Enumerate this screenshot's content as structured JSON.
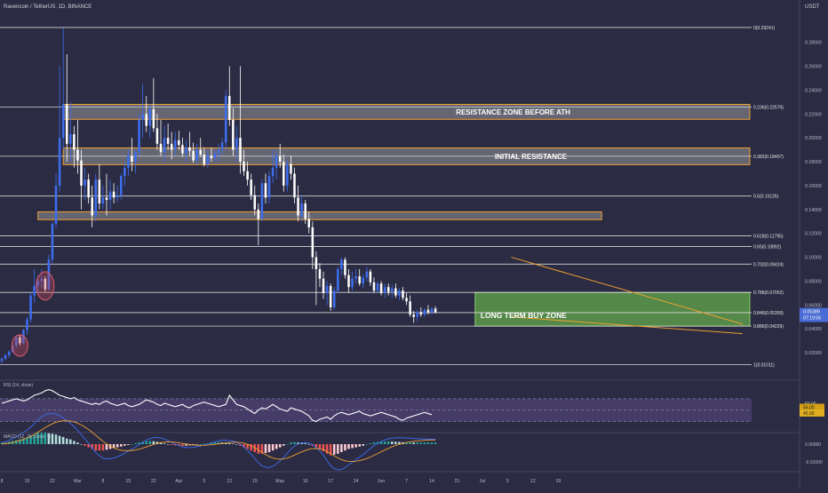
{
  "header": {
    "symbol": "Ravencoin / TetherUS, 1D, BINANCE",
    "currency": "USDT"
  },
  "colors": {
    "background": "#2b2b43",
    "up": "#3d6ef0",
    "down": "#ffffff",
    "fib_line": "#d8d8d8",
    "zone_fill": "#b0b0b0",
    "zone_border": "#f0a030",
    "buy_zone_fill": "#5c9a4a",
    "buy_zone_border": "#8fd06c",
    "wedge_line": "#f0a030",
    "rsi_band": "#5c4a87",
    "rsi_line": "#ffffff",
    "macd_pos": "#26a69a",
    "macd_neg": "#ef5350",
    "macd_line": "#3d6ef0",
    "signal_line": "#f0a030",
    "price_badge": "#4a6cd4"
  },
  "chart_data": {
    "type": "candlestick",
    "price_axis": {
      "range": [
        0.0,
        0.3
      ],
      "ticks": [
        "0.28000",
        "0.26000",
        "0.24000",
        "0.22000",
        "0.20000",
        "0.18000",
        "0.16000",
        "0.14000",
        "0.12000",
        "0.10000",
        "0.08000",
        "0.06000",
        "0.04000",
        "0.02000"
      ],
      "tick_values": [
        0.28,
        0.26,
        0.24,
        0.22,
        0.2,
        0.18,
        0.16,
        0.14,
        0.12,
        0.1,
        0.08,
        0.06,
        0.04,
        0.02
      ]
    },
    "fib_levels": [
      {
        "label": "0(0.29241)",
        "value": 0.29241
      },
      {
        "label": "0.236(0.22579)",
        "value": 0.22579
      },
      {
        "label": "0.382(0.18457)",
        "value": 0.18457
      },
      {
        "label": "0.5(0.15126)",
        "value": 0.15126
      },
      {
        "label": "0.618(0.11795)",
        "value": 0.11795
      },
      {
        "label": "0.65(0.10892)",
        "value": 0.10892
      },
      {
        "label": "0.702(0.09424)",
        "value": 0.09424
      },
      {
        "label": "0.786(0.07052)",
        "value": 0.07052
      },
      {
        "label": "0.846(0.05359)",
        "value": 0.05359
      },
      {
        "label": "0.886(0.04229)",
        "value": 0.04229
      },
      {
        "label": "1(0.01011)",
        "value": 0.01011
      }
    ],
    "zones": [
      {
        "label": "RESISTANCE ZONE BEFORE ATH",
        "low": 0.2155,
        "high": 0.228,
        "kind": "resistance",
        "start": 17,
        "end": 207
      },
      {
        "label": "INITIAL RESISTANCE",
        "low": 0.1775,
        "high": 0.1915,
        "kind": "resistance",
        "start": 17,
        "end": 207
      },
      {
        "label": "",
        "low": 0.1315,
        "high": 0.138,
        "kind": "resistance",
        "start": 10,
        "end": 166
      },
      {
        "label": "LONG TERM BUY ZONE",
        "low": 0.0423,
        "high": 0.0705,
        "kind": "buy",
        "start": 131,
        "end": 207
      }
    ],
    "wedge": {
      "upper": [
        [
          141,
          0.1
        ],
        [
          205,
          0.044
        ]
      ],
      "lower": [
        [
          141,
          0.05
        ],
        [
          205,
          0.036
        ]
      ]
    },
    "current_price": {
      "value": "0.05389",
      "countdown": "07:19:56"
    },
    "candles": [
      {
        "o": 0.013,
        "h": 0.016,
        "l": 0.011,
        "c": 0.015
      },
      {
        "o": 0.015,
        "h": 0.019,
        "l": 0.014,
        "c": 0.018
      },
      {
        "o": 0.018,
        "h": 0.022,
        "l": 0.016,
        "c": 0.021
      },
      {
        "o": 0.021,
        "h": 0.027,
        "l": 0.02,
        "c": 0.026
      },
      {
        "o": 0.026,
        "h": 0.034,
        "l": 0.024,
        "c": 0.033
      },
      {
        "o": 0.033,
        "h": 0.035,
        "l": 0.026,
        "c": 0.028
      },
      {
        "o": 0.028,
        "h": 0.04,
        "l": 0.027,
        "c": 0.039
      },
      {
        "o": 0.039,
        "h": 0.05,
        "l": 0.035,
        "c": 0.048
      },
      {
        "o": 0.048,
        "h": 0.07,
        "l": 0.045,
        "c": 0.068
      },
      {
        "o": 0.068,
        "h": 0.09,
        "l": 0.062,
        "c": 0.076
      },
      {
        "o": 0.076,
        "h": 0.085,
        "l": 0.07,
        "c": 0.08
      },
      {
        "o": 0.08,
        "h": 0.09,
        "l": 0.074,
        "c": 0.082
      },
      {
        "o": 0.082,
        "h": 0.084,
        "l": 0.071,
        "c": 0.073
      },
      {
        "o": 0.073,
        "h": 0.102,
        "l": 0.072,
        "c": 0.098
      },
      {
        "o": 0.098,
        "h": 0.13,
        "l": 0.095,
        "c": 0.128
      },
      {
        "o": 0.128,
        "h": 0.17,
        "l": 0.125,
        "c": 0.16
      },
      {
        "o": 0.16,
        "h": 0.26,
        "l": 0.155,
        "c": 0.2
      },
      {
        "o": 0.2,
        "h": 0.292,
        "l": 0.19,
        "c": 0.228
      },
      {
        "o": 0.228,
        "h": 0.27,
        "l": 0.18,
        "c": 0.195
      },
      {
        "o": 0.195,
        "h": 0.23,
        "l": 0.18,
        "c": 0.203
      },
      {
        "o": 0.203,
        "h": 0.21,
        "l": 0.175,
        "c": 0.19
      },
      {
        "o": 0.19,
        "h": 0.215,
        "l": 0.17,
        "c": 0.181
      },
      {
        "o": 0.181,
        "h": 0.19,
        "l": 0.14,
        "c": 0.16
      },
      {
        "o": 0.16,
        "h": 0.175,
        "l": 0.148,
        "c": 0.165
      },
      {
        "o": 0.165,
        "h": 0.17,
        "l": 0.145,
        "c": 0.15
      },
      {
        "o": 0.15,
        "h": 0.16,
        "l": 0.125,
        "c": 0.135
      },
      {
        "o": 0.135,
        "h": 0.17,
        "l": 0.13,
        "c": 0.165
      },
      {
        "o": 0.165,
        "h": 0.178,
        "l": 0.14,
        "c": 0.145
      },
      {
        "o": 0.145,
        "h": 0.16,
        "l": 0.14,
        "c": 0.15
      },
      {
        "o": 0.15,
        "h": 0.17,
        "l": 0.135,
        "c": 0.148
      },
      {
        "o": 0.148,
        "h": 0.165,
        "l": 0.14,
        "c": 0.155
      },
      {
        "o": 0.155,
        "h": 0.162,
        "l": 0.145,
        "c": 0.15
      },
      {
        "o": 0.15,
        "h": 0.16,
        "l": 0.146,
        "c": 0.152
      },
      {
        "o": 0.152,
        "h": 0.17,
        "l": 0.148,
        "c": 0.168
      },
      {
        "o": 0.168,
        "h": 0.18,
        "l": 0.16,
        "c": 0.175
      },
      {
        "o": 0.175,
        "h": 0.19,
        "l": 0.168,
        "c": 0.185
      },
      {
        "o": 0.185,
        "h": 0.2,
        "l": 0.172,
        "c": 0.18
      },
      {
        "o": 0.18,
        "h": 0.19,
        "l": 0.17,
        "c": 0.188
      },
      {
        "o": 0.188,
        "h": 0.22,
        "l": 0.185,
        "c": 0.215
      },
      {
        "o": 0.215,
        "h": 0.245,
        "l": 0.2,
        "c": 0.22
      },
      {
        "o": 0.22,
        "h": 0.235,
        "l": 0.205,
        "c": 0.21
      },
      {
        "o": 0.21,
        "h": 0.228,
        "l": 0.2,
        "c": 0.224
      },
      {
        "o": 0.224,
        "h": 0.25,
        "l": 0.205,
        "c": 0.208
      },
      {
        "o": 0.208,
        "h": 0.22,
        "l": 0.19,
        "c": 0.195
      },
      {
        "o": 0.195,
        "h": 0.215,
        "l": 0.185,
        "c": 0.188
      },
      {
        "o": 0.188,
        "h": 0.21,
        "l": 0.18,
        "c": 0.2
      },
      {
        "o": 0.2,
        "h": 0.212,
        "l": 0.19,
        "c": 0.195
      },
      {
        "o": 0.195,
        "h": 0.205,
        "l": 0.182,
        "c": 0.19
      },
      {
        "o": 0.19,
        "h": 0.205,
        "l": 0.185,
        "c": 0.198
      },
      {
        "o": 0.198,
        "h": 0.206,
        "l": 0.19,
        "c": 0.194
      },
      {
        "o": 0.194,
        "h": 0.2,
        "l": 0.184,
        "c": 0.187
      },
      {
        "o": 0.187,
        "h": 0.198,
        "l": 0.18,
        "c": 0.192
      },
      {
        "o": 0.192,
        "h": 0.205,
        "l": 0.185,
        "c": 0.189
      },
      {
        "o": 0.189,
        "h": 0.196,
        "l": 0.179,
        "c": 0.181
      },
      {
        "o": 0.181,
        "h": 0.195,
        "l": 0.178,
        "c": 0.19
      },
      {
        "o": 0.19,
        "h": 0.2,
        "l": 0.184,
        "c": 0.186
      },
      {
        "o": 0.186,
        "h": 0.192,
        "l": 0.176,
        "c": 0.178
      },
      {
        "o": 0.178,
        "h": 0.19,
        "l": 0.175,
        "c": 0.185
      },
      {
        "o": 0.185,
        "h": 0.192,
        "l": 0.18,
        "c": 0.183
      },
      {
        "o": 0.183,
        "h": 0.19,
        "l": 0.18,
        "c": 0.187
      },
      {
        "o": 0.187,
        "h": 0.195,
        "l": 0.18,
        "c": 0.19
      },
      {
        "o": 0.19,
        "h": 0.2,
        "l": 0.186,
        "c": 0.196
      },
      {
        "o": 0.196,
        "h": 0.24,
        "l": 0.19,
        "c": 0.235
      },
      {
        "o": 0.235,
        "h": 0.26,
        "l": 0.21,
        "c": 0.215
      },
      {
        "o": 0.215,
        "h": 0.225,
        "l": 0.185,
        "c": 0.19
      },
      {
        "o": 0.19,
        "h": 0.21,
        "l": 0.18,
        "c": 0.2
      },
      {
        "o": 0.2,
        "h": 0.26,
        "l": 0.17,
        "c": 0.18
      },
      {
        "o": 0.18,
        "h": 0.19,
        "l": 0.168,
        "c": 0.172
      },
      {
        "o": 0.172,
        "h": 0.18,
        "l": 0.16,
        "c": 0.165
      },
      {
        "o": 0.165,
        "h": 0.17,
        "l": 0.148,
        "c": 0.152
      },
      {
        "o": 0.152,
        "h": 0.16,
        "l": 0.135,
        "c": 0.14
      },
      {
        "o": 0.14,
        "h": 0.145,
        "l": 0.11,
        "c": 0.132
      },
      {
        "o": 0.132,
        "h": 0.165,
        "l": 0.13,
        "c": 0.162
      },
      {
        "o": 0.162,
        "h": 0.17,
        "l": 0.145,
        "c": 0.15
      },
      {
        "o": 0.15,
        "h": 0.172,
        "l": 0.145,
        "c": 0.168
      },
      {
        "o": 0.168,
        "h": 0.19,
        "l": 0.162,
        "c": 0.175
      },
      {
        "o": 0.175,
        "h": 0.19,
        "l": 0.165,
        "c": 0.185
      },
      {
        "o": 0.185,
        "h": 0.195,
        "l": 0.175,
        "c": 0.18
      },
      {
        "o": 0.18,
        "h": 0.186,
        "l": 0.155,
        "c": 0.16
      },
      {
        "o": 0.16,
        "h": 0.182,
        "l": 0.155,
        "c": 0.178
      },
      {
        "o": 0.178,
        "h": 0.185,
        "l": 0.165,
        "c": 0.17
      },
      {
        "o": 0.17,
        "h": 0.175,
        "l": 0.145,
        "c": 0.15
      },
      {
        "o": 0.15,
        "h": 0.16,
        "l": 0.13,
        "c": 0.135
      },
      {
        "o": 0.135,
        "h": 0.152,
        "l": 0.13,
        "c": 0.145
      },
      {
        "o": 0.145,
        "h": 0.148,
        "l": 0.128,
        "c": 0.132
      },
      {
        "o": 0.132,
        "h": 0.138,
        "l": 0.12,
        "c": 0.125
      },
      {
        "o": 0.125,
        "h": 0.13,
        "l": 0.09,
        "c": 0.1
      },
      {
        "o": 0.1,
        "h": 0.105,
        "l": 0.06,
        "c": 0.09
      },
      {
        "o": 0.09,
        "h": 0.095,
        "l": 0.075,
        "c": 0.082
      },
      {
        "o": 0.082,
        "h": 0.088,
        "l": 0.065,
        "c": 0.07
      },
      {
        "o": 0.07,
        "h": 0.08,
        "l": 0.06,
        "c": 0.076
      },
      {
        "o": 0.076,
        "h": 0.078,
        "l": 0.055,
        "c": 0.058
      },
      {
        "o": 0.058,
        "h": 0.075,
        "l": 0.056,
        "c": 0.072
      },
      {
        "o": 0.072,
        "h": 0.092,
        "l": 0.07,
        "c": 0.09
      },
      {
        "o": 0.09,
        "h": 0.1,
        "l": 0.085,
        "c": 0.098
      },
      {
        "o": 0.098,
        "h": 0.1,
        "l": 0.082,
        "c": 0.085
      },
      {
        "o": 0.085,
        "h": 0.09,
        "l": 0.07,
        "c": 0.075
      },
      {
        "o": 0.075,
        "h": 0.088,
        "l": 0.072,
        "c": 0.082
      },
      {
        "o": 0.082,
        "h": 0.09,
        "l": 0.078,
        "c": 0.084
      },
      {
        "o": 0.084,
        "h": 0.09,
        "l": 0.076,
        "c": 0.078
      },
      {
        "o": 0.078,
        "h": 0.086,
        "l": 0.074,
        "c": 0.083
      },
      {
        "o": 0.083,
        "h": 0.092,
        "l": 0.08,
        "c": 0.088
      },
      {
        "o": 0.088,
        "h": 0.09,
        "l": 0.076,
        "c": 0.079
      },
      {
        "o": 0.079,
        "h": 0.083,
        "l": 0.07,
        "c": 0.072
      },
      {
        "o": 0.072,
        "h": 0.08,
        "l": 0.07,
        "c": 0.078
      },
      {
        "o": 0.078,
        "h": 0.08,
        "l": 0.068,
        "c": 0.07
      },
      {
        "o": 0.07,
        "h": 0.078,
        "l": 0.066,
        "c": 0.075
      },
      {
        "o": 0.075,
        "h": 0.078,
        "l": 0.068,
        "c": 0.071
      },
      {
        "o": 0.071,
        "h": 0.077,
        "l": 0.066,
        "c": 0.074
      },
      {
        "o": 0.074,
        "h": 0.078,
        "l": 0.066,
        "c": 0.068
      },
      {
        "o": 0.068,
        "h": 0.074,
        "l": 0.064,
        "c": 0.072
      },
      {
        "o": 0.072,
        "h": 0.075,
        "l": 0.064,
        "c": 0.066
      },
      {
        "o": 0.066,
        "h": 0.07,
        "l": 0.06,
        "c": 0.063
      },
      {
        "o": 0.063,
        "h": 0.068,
        "l": 0.05,
        "c": 0.052
      },
      {
        "o": 0.052,
        "h": 0.055,
        "l": 0.045,
        "c": 0.05
      },
      {
        "o": 0.05,
        "h": 0.056,
        "l": 0.046,
        "c": 0.054
      },
      {
        "o": 0.054,
        "h": 0.058,
        "l": 0.05,
        "c": 0.052
      },
      {
        "o": 0.052,
        "h": 0.057,
        "l": 0.05,
        "c": 0.056
      },
      {
        "o": 0.056,
        "h": 0.06,
        "l": 0.052,
        "c": 0.054
      },
      {
        "o": 0.054,
        "h": 0.058,
        "l": 0.052,
        "c": 0.057
      },
      {
        "o": 0.057,
        "h": 0.059,
        "l": 0.053,
        "c": 0.054
      }
    ],
    "x_axis": {
      "tick_labels": [
        "8",
        "15",
        "22",
        "Mar",
        "8",
        "15",
        "22",
        "Apr",
        "5",
        "12",
        "19",
        "May",
        "10",
        "17",
        "24",
        "Jun",
        "7",
        "14",
        "21",
        "Jul",
        "5",
        "12",
        "19"
      ],
      "tick_index": [
        0,
        7,
        14,
        21,
        28,
        35,
        42,
        49,
        56,
        63,
        70,
        77,
        84,
        91,
        98,
        105,
        112,
        119,
        126,
        133,
        140,
        147,
        154
      ]
    },
    "rsi": {
      "label": "RSI (14, close)",
      "upper": 70,
      "lower": 30,
      "badge_values": [
        "55.00",
        "45.00"
      ],
      "axis_label": "60.00",
      "values": [
        62,
        64,
        66,
        68,
        70,
        68,
        66,
        68,
        72,
        76,
        78,
        80,
        84,
        86,
        84,
        80,
        76,
        74,
        72,
        70,
        72,
        68,
        66,
        64,
        62,
        60,
        62,
        60,
        64,
        66,
        62,
        60,
        58,
        60,
        62,
        58,
        56,
        58,
        60,
        64,
        68,
        66,
        64,
        60,
        58,
        62,
        60,
        58,
        56,
        58,
        60,
        56,
        54,
        58,
        60,
        62,
        64,
        62,
        60,
        58,
        56,
        58,
        60,
        76,
        68,
        60,
        58,
        56,
        52,
        48,
        44,
        50,
        54,
        52,
        56,
        60,
        56,
        52,
        50,
        48,
        54,
        52,
        50,
        48,
        44,
        40,
        32,
        30,
        34,
        36,
        38,
        34,
        40,
        44,
        46,
        44,
        42,
        44,
        46,
        48,
        44,
        42,
        40,
        42,
        44,
        46,
        44,
        42,
        40,
        38,
        34,
        32,
        36,
        38,
        40,
        42,
        44,
        46,
        44,
        42
      ]
    },
    "macd": {
      "label": "MACD (12, 26, close, 9)",
      "axis_labels": [
        "0.00000",
        "-0.01000"
      ],
      "hist": [
        0.001,
        0.001,
        0.0015,
        0.002,
        0.0025,
        0.003,
        0.0035,
        0.004,
        0.005,
        0.006,
        0.007,
        0.007,
        0.0072,
        0.0068,
        0.0065,
        0.006,
        0.0052,
        0.0045,
        0.0035,
        0.003,
        0.002,
        0.001,
        0.0,
        -0.001,
        -0.002,
        -0.003,
        -0.004,
        -0.004,
        -0.004,
        -0.0035,
        -0.003,
        -0.0025,
        -0.002,
        -0.0015,
        -0.001,
        -0.0005,
        0.0,
        0.0005,
        0.001,
        0.0015,
        0.0018,
        0.002,
        0.0018,
        0.0015,
        0.001,
        0.0005,
        0.0,
        -0.0005,
        -0.0008,
        -0.001,
        -0.0012,
        -0.001,
        -0.0008,
        -0.0005,
        -0.0003,
        0.0,
        0.0003,
        0.0005,
        0.0008,
        0.001,
        0.0012,
        0.001,
        0.0008,
        0.0006,
        0.0003,
        0.0,
        -0.001,
        -0.002,
        -0.003,
        -0.004,
        -0.005,
        -0.006,
        -0.006,
        -0.0055,
        -0.005,
        -0.004,
        -0.003,
        -0.002,
        -0.001,
        0.0,
        0.001,
        0.0012,
        0.001,
        0.0008,
        0.0005,
        0.0,
        -0.001,
        -0.002,
        -0.003,
        -0.0045,
        -0.006,
        -0.007,
        -0.0065,
        -0.006,
        -0.005,
        -0.004,
        -0.003,
        -0.0025,
        -0.002,
        -0.0015,
        -0.001,
        0.0,
        0.0005,
        0.001,
        0.0013,
        0.0015,
        0.0016,
        0.0017,
        0.0016,
        0.0015,
        0.0014,
        0.0012,
        0.0012,
        0.0012,
        0.001,
        0.001,
        0.001,
        0.001,
        0.001,
        0.001,
        0.001
      ]
    }
  }
}
